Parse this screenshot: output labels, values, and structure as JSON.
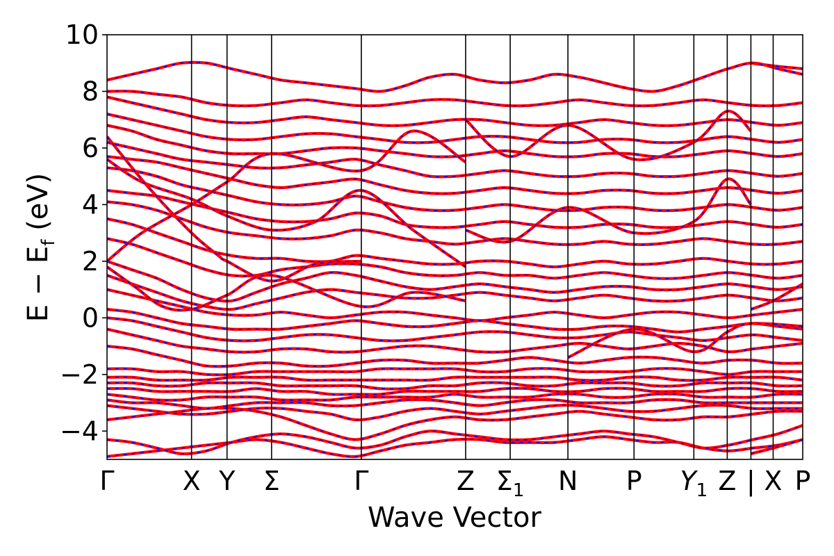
{
  "chart_data": {
    "type": "line",
    "xlabel": "Wave Vector",
    "ylabel": "E − E_f (eV)",
    "ylabel_parts": {
      "main": "E − E",
      "sub": "f",
      "unit": " (eV)"
    },
    "ylim": [
      -5,
      10
    ],
    "yticks": [
      -4,
      -2,
      0,
      2,
      4,
      6,
      8,
      10
    ],
    "grid": false,
    "kpath": [
      {
        "label": "Γ",
        "pos": 0.0
      },
      {
        "label": "X",
        "pos": 0.1215
      },
      {
        "label": "Y",
        "pos": 0.1725
      },
      {
        "label": "Σ",
        "pos": 0.2365
      },
      {
        "label": "Γ",
        "pos": 0.3655
      },
      {
        "label": "Z",
        "pos": 0.5155
      },
      {
        "label": "Σ",
        "sub": "1",
        "pos": 0.5795
      },
      {
        "label": "N",
        "pos": 0.6625
      },
      {
        "label": "P",
        "pos": 0.7575
      },
      {
        "label": "Y",
        "sub": "1",
        "italic": true,
        "pos": 0.8435
      },
      {
        "label": "Z",
        "pos": 0.8915
      },
      {
        "label": "|",
        "pos": 0.9255
      },
      {
        "label": "X",
        "pos": 0.9575
      },
      {
        "label": "P",
        "pos": 1.0
      }
    ],
    "series_colors": [
      "#ff0000",
      "#0000ff"
    ],
    "bands": [
      [
        -4.9,
        -4.8,
        -4.7,
        -4.6,
        -4.5,
        -4.4,
        -4.3,
        -4.4,
        -4.6,
        -4.8,
        -4.9,
        -4.7,
        -4.5,
        -4.4,
        -4.3,
        -4.3,
        -4.4,
        -4.4,
        -4.4,
        -4.3,
        -4.2,
        -4.3,
        -4.4,
        -4.4,
        -4.6,
        -4.7,
        -4.6,
        -4.5,
        -4.3
      ],
      [
        -4.3,
        -4.4,
        -4.6,
        -4.8,
        -4.7,
        -4.4,
        -4.2,
        -4.1,
        -4.2,
        -4.4,
        -4.6,
        -4.5,
        -4.2,
        -4.0,
        -4.1,
        -4.2,
        -4.3,
        -4.3,
        -4.2,
        -4.1,
        -4.0,
        -4.1,
        -4.2,
        -4.4,
        -4.6,
        -4.5,
        -4.3,
        -4.1,
        -3.8
      ],
      [
        -3.6,
        -3.5,
        -3.4,
        -3.3,
        -3.2,
        -3.2,
        -3.3,
        -3.5,
        -3.8,
        -4.1,
        -4.3,
        -4.1,
        -3.8,
        -3.6,
        -3.5,
        -3.6,
        -3.6,
        -3.5,
        -3.4,
        -3.3,
        -3.4,
        -3.5,
        -3.6,
        -3.6,
        -3.5,
        -3.5,
        -3.4,
        -3.3,
        -3.3
      ],
      [
        -3.1,
        -3.2,
        -3.3,
        -3.4,
        -3.4,
        -3.3,
        -3.2,
        -3.2,
        -3.3,
        -3.4,
        -3.6,
        -3.5,
        -3.3,
        -3.2,
        -3.3,
        -3.4,
        -3.3,
        -3.2,
        -3.1,
        -3.1,
        -3.2,
        -3.3,
        -3.3,
        -3.2,
        -3.1,
        -3.1,
        -3.2,
        -3.2,
        -3.2
      ],
      [
        -2.9,
        -3.0,
        -3.0,
        -3.1,
        -3.2,
        -3.1,
        -3.0,
        -3.0,
        -3.0,
        -3.1,
        -3.1,
        -3.0,
        -2.9,
        -2.9,
        -3.0,
        -3.1,
        -3.0,
        -2.9,
        -2.9,
        -3.0,
        -3.0,
        -3.0,
        -2.9,
        -2.9,
        -3.0,
        -3.0,
        -3.0,
        -3.0,
        -3.0
      ],
      [
        -2.7,
        -2.8,
        -2.9,
        -2.9,
        -2.8,
        -2.8,
        -2.8,
        -2.9,
        -2.9,
        -2.9,
        -2.8,
        -2.8,
        -2.8,
        -2.8,
        -2.7,
        -2.8,
        -2.8,
        -2.8,
        -2.7,
        -2.7,
        -2.8,
        -2.8,
        -2.7,
        -2.7,
        -2.8,
        -2.8,
        -2.8,
        -2.7,
        -2.7
      ],
      [
        -2.5,
        -2.5,
        -2.6,
        -2.6,
        -2.6,
        -2.6,
        -2.5,
        -2.6,
        -2.6,
        -2.7,
        -2.7,
        -2.7,
        -2.6,
        -2.6,
        -2.6,
        -2.6,
        -2.5,
        -2.5,
        -2.6,
        -2.6,
        -2.5,
        -2.5,
        -2.6,
        -2.6,
        -2.6,
        -2.5,
        -2.5,
        -2.6,
        -2.6
      ],
      [
        -2.3,
        -2.3,
        -2.4,
        -2.4,
        -2.3,
        -2.3,
        -2.3,
        -2.4,
        -2.4,
        -2.4,
        -2.4,
        -2.5,
        -2.5,
        -2.4,
        -2.4,
        -2.3,
        -2.3,
        -2.4,
        -2.4,
        -2.3,
        -2.3,
        -2.3,
        -2.4,
        -2.4,
        -2.3,
        -2.3,
        -2.3,
        -2.4,
        -2.4
      ],
      [
        -2.1,
        -2.1,
        -2.2,
        -2.2,
        -2.2,
        -2.1,
        -2.1,
        -2.1,
        -2.2,
        -2.2,
        -2.2,
        -2.2,
        -2.2,
        -2.2,
        -2.1,
        -2.1,
        -2.1,
        -2.1,
        -2.1,
        -2.2,
        -2.2,
        -2.1,
        -2.1,
        -2.2,
        -2.2,
        -2.1,
        -2.1,
        -2.1,
        -2.2
      ],
      [
        -1.8,
        -1.8,
        -1.9,
        -1.9,
        -2.0,
        -2.0,
        -1.9,
        -1.9,
        -1.9,
        -1.9,
        -1.9,
        -1.8,
        -1.8,
        -1.8,
        -1.8,
        -1.9,
        -1.9,
        -1.8,
        -1.8,
        -1.9,
        -1.9,
        -1.9,
        -1.8,
        -1.8,
        -1.9,
        -2.0,
        -1.9,
        -1.9,
        -1.9
      ],
      [
        -1.0,
        -1.1,
        -1.3,
        -1.5,
        -1.7,
        -1.7,
        -1.6,
        -1.6,
        -1.7,
        -1.7,
        -1.6,
        -1.5,
        -1.5,
        -1.6,
        -1.6,
        -1.6,
        -1.5,
        -1.4,
        -1.5,
        -1.6,
        -1.5,
        -1.4,
        -1.4,
        -1.5,
        -1.6,
        -1.5,
        -1.5,
        -1.6,
        -1.6
      ],
      [
        -0.4,
        -0.6,
        -0.8,
        -1.0,
        -1.1,
        -1.2,
        -1.2,
        -1.1,
        -1.1,
        -1.2,
        -1.2,
        -1.1,
        -1.0,
        -1.0,
        -1.1,
        -1.2,
        -1.2,
        -1.1,
        -1.0,
        -0.9,
        -1.0,
        -1.1,
        -1.0,
        -0.9,
        -1.0,
        -1.2,
        -1.1,
        -1.0,
        -0.9
      ],
      [
        0.0,
        -0.1,
        -0.3,
        -0.5,
        -0.7,
        -0.8,
        -0.8,
        -0.7,
        -0.6,
        -0.6,
        -0.7,
        -0.8,
        -0.8,
        -0.7,
        -0.6,
        -0.5,
        -0.5,
        -0.6,
        -0.7,
        -0.7,
        -0.6,
        -0.5,
        -0.6,
        -0.7,
        -0.8,
        -0.7,
        -0.6,
        -0.7,
        -0.8
      ],
      [
        0.3,
        0.2,
        0.0,
        -0.2,
        -0.3,
        -0.4,
        -0.4,
        -0.4,
        -0.3,
        -0.2,
        -0.1,
        -0.2,
        -0.3,
        -0.3,
        -0.2,
        -0.1,
        -0.2,
        -0.3,
        -0.4,
        -0.4,
        -0.3,
        -0.3,
        -0.4,
        -0.5,
        -0.4,
        -0.3,
        -0.2,
        -0.3,
        -0.4
      ],
      [
        1.0,
        0.8,
        0.6,
        0.4,
        0.2,
        0.1,
        0.1,
        0.2,
        0.1,
        0.0,
        0.1,
        0.2,
        0.2,
        0.1,
        0.0,
        -0.1,
        0.0,
        0.1,
        0.2,
        0.1,
        0.0,
        0.1,
        0.2,
        0.2,
        0.1,
        0.0,
        0.1,
        0.2,
        0.3
      ],
      [
        1.5,
        1.2,
        0.9,
        0.6,
        0.4,
        0.3,
        0.5,
        0.7,
        0.9,
        1.0,
        0.9,
        0.8,
        0.7,
        0.7,
        0.8,
        0.9,
        0.8,
        0.7,
        0.6,
        0.7,
        0.8,
        0.7,
        0.6,
        0.6,
        0.7,
        0.8,
        0.7,
        0.6,
        0.7
      ],
      [
        2.0,
        1.7,
        1.4,
        1.0,
        0.7,
        0.6,
        0.9,
        1.2,
        1.4,
        1.6,
        1.5,
        1.3,
        1.1,
        1.0,
        1.1,
        1.2,
        1.1,
        1.0,
        0.9,
        1.0,
        1.1,
        1.1,
        1.0,
        1.0,
        1.1,
        1.2,
        1.1,
        1.0,
        1.1
      ],
      [
        2.8,
        2.6,
        2.3,
        2.0,
        1.7,
        1.5,
        1.5,
        1.7,
        1.8,
        1.9,
        1.9,
        1.8,
        1.6,
        1.5,
        1.5,
        1.6,
        1.5,
        1.5,
        1.4,
        1.5,
        1.6,
        1.5,
        1.4,
        1.4,
        1.5,
        1.6,
        1.5,
        1.4,
        1.5
      ],
      [
        3.5,
        3.3,
        3.0,
        2.7,
        2.4,
        2.2,
        2.1,
        2.1,
        2.0,
        2.0,
        2.2,
        2.1,
        2.0,
        1.9,
        1.9,
        2.0,
        2.0,
        1.9,
        1.8,
        1.9,
        2.0,
        1.9,
        1.9,
        2.0,
        2.1,
        2.0,
        1.9,
        1.9,
        2.0
      ],
      [
        4.1,
        4.0,
        3.8,
        3.5,
        3.2,
        3.0,
        2.9,
        2.8,
        2.8,
        2.9,
        3.1,
        3.0,
        2.8,
        2.7,
        2.6,
        2.7,
        2.8,
        2.7,
        2.6,
        2.6,
        2.7,
        2.6,
        2.6,
        2.7,
        2.8,
        2.7,
        2.6,
        2.6,
        2.7
      ],
      [
        4.5,
        4.4,
        4.3,
        4.1,
        3.9,
        3.7,
        3.5,
        3.4,
        3.4,
        3.5,
        3.7,
        3.6,
        3.3,
        3.2,
        3.2,
        3.3,
        3.4,
        3.3,
        3.2,
        3.2,
        3.3,
        3.3,
        3.2,
        3.2,
        3.3,
        3.4,
        3.3,
        3.2,
        3.3
      ],
      [
        5.3,
        5.2,
        5.0,
        4.7,
        4.5,
        4.3,
        4.1,
        4.0,
        4.0,
        4.1,
        4.3,
        4.1,
        3.9,
        3.8,
        3.8,
        3.9,
        4.0,
        3.9,
        3.8,
        3.8,
        3.9,
        3.9,
        3.8,
        3.8,
        3.9,
        4.0,
        3.9,
        3.8,
        3.9
      ],
      [
        5.7,
        5.6,
        5.5,
        5.3,
        5.1,
        4.9,
        4.7,
        4.6,
        4.7,
        4.8,
        4.9,
        4.7,
        4.5,
        4.4,
        4.4,
        4.5,
        4.6,
        4.5,
        4.4,
        4.4,
        4.5,
        4.5,
        4.4,
        4.4,
        4.5,
        4.6,
        4.5,
        4.4,
        4.5
      ],
      [
        6.2,
        6.0,
        5.8,
        5.6,
        5.5,
        5.4,
        5.3,
        5.3,
        5.4,
        5.5,
        5.6,
        5.4,
        5.2,
        5.0,
        5.0,
        5.1,
        5.2,
        5.1,
        5.0,
        5.0,
        5.1,
        5.1,
        5.0,
        5.0,
        5.1,
        5.2,
        5.1,
        5.0,
        5.1
      ],
      [
        6.8,
        6.6,
        6.3,
        6.1,
        5.9,
        5.8,
        5.8,
        5.8,
        5.9,
        6.0,
        6.0,
        5.9,
        5.8,
        5.7,
        5.7,
        5.8,
        5.9,
        5.8,
        5.7,
        5.7,
        5.8,
        5.8,
        5.7,
        5.7,
        5.8,
        5.9,
        5.8,
        5.7,
        5.8
      ],
      [
        7.2,
        7.0,
        6.8,
        6.6,
        6.4,
        6.3,
        6.3,
        6.4,
        6.5,
        6.5,
        6.4,
        6.3,
        6.2,
        6.2,
        6.3,
        6.4,
        6.4,
        6.3,
        6.2,
        6.2,
        6.3,
        6.3,
        6.2,
        6.2,
        6.3,
        6.4,
        6.3,
        6.2,
        6.3
      ],
      [
        7.8,
        7.6,
        7.4,
        7.2,
        7.0,
        6.9,
        6.9,
        7.0,
        7.1,
        7.0,
        6.9,
        6.8,
        6.8,
        6.9,
        7.0,
        7.0,
        6.9,
        6.8,
        6.8,
        6.9,
        7.0,
        6.9,
        6.8,
        6.8,
        6.9,
        7.0,
        6.9,
        6.8,
        6.9
      ],
      [
        8.0,
        8.0,
        7.9,
        7.8,
        7.6,
        7.5,
        7.5,
        7.6,
        7.7,
        7.6,
        7.5,
        7.5,
        7.6,
        7.7,
        7.7,
        7.6,
        7.5,
        7.5,
        7.6,
        7.7,
        7.6,
        7.5,
        7.5,
        7.6,
        7.7,
        7.6,
        7.5,
        7.5,
        7.6
      ],
      [
        8.4,
        8.6,
        8.8,
        9.0,
        9.0,
        8.8,
        8.6,
        8.4,
        8.3,
        8.2,
        8.1,
        8.0,
        8.2,
        8.5,
        8.6,
        8.4,
        8.3,
        8.4,
        8.6,
        8.5,
        8.3,
        8.1,
        8.0,
        8.2,
        8.5,
        8.8,
        9.0,
        8.8,
        8.6
      ]
    ],
    "crossing_bands": [
      [
        [
          0.0,
          6.4
        ],
        [
          0.06,
          4.6
        ],
        [
          0.1215,
          3.0
        ],
        [
          0.16,
          2.2
        ],
        [
          0.1725,
          2.0
        ],
        [
          0.2365,
          1.3
        ],
        [
          0.3,
          1.9
        ],
        [
          0.3655,
          2.0
        ]
      ],
      [
        [
          0.0,
          5.6
        ],
        [
          0.05,
          4.8
        ],
        [
          0.1215,
          4.2
        ],
        [
          0.1725,
          3.6
        ],
        [
          0.2365,
          3.1
        ],
        [
          0.3,
          3.4
        ],
        [
          0.3655,
          4.5
        ],
        [
          0.44,
          3.1
        ],
        [
          0.5155,
          1.8
        ]
      ],
      [
        [
          0.0,
          1.8
        ],
        [
          0.04,
          1.1
        ],
        [
          0.08,
          0.4
        ],
        [
          0.1215,
          0.3
        ],
        [
          0.1725,
          0.8
        ],
        [
          0.2365,
          1.5
        ],
        [
          0.3655,
          0.4
        ],
        [
          0.44,
          0.9
        ],
        [
          0.5155,
          0.6
        ]
      ],
      [
        [
          0.0,
          2.0
        ],
        [
          0.05,
          3.0
        ],
        [
          0.1215,
          4.0
        ],
        [
          0.1725,
          4.8
        ],
        [
          0.2365,
          5.8
        ],
        [
          0.3655,
          5.2
        ],
        [
          0.44,
          6.6
        ],
        [
          0.5155,
          5.5
        ]
      ],
      [
        [
          0.5155,
          7.0
        ],
        [
          0.5795,
          5.7
        ],
        [
          0.6625,
          6.8
        ],
        [
          0.7575,
          5.6
        ],
        [
          0.8435,
          6.2
        ],
        [
          0.8915,
          7.3
        ],
        [
          0.9255,
          6.6
        ]
      ],
      [
        [
          0.5155,
          3.1
        ],
        [
          0.5795,
          2.7
        ],
        [
          0.6625,
          3.9
        ],
        [
          0.7575,
          3.0
        ],
        [
          0.8435,
          3.4
        ],
        [
          0.8915,
          4.9
        ],
        [
          0.9255,
          4.0
        ]
      ],
      [
        [
          0.6625,
          -1.4
        ],
        [
          0.7575,
          -0.4
        ],
        [
          0.8435,
          -1.2
        ],
        [
          0.8915,
          -0.5
        ],
        [
          0.9255,
          -0.2
        ],
        [
          1.0,
          -0.3
        ]
      ],
      [
        [
          0.9255,
          9.0
        ],
        [
          0.9575,
          8.9
        ],
        [
          1.0,
          8.8
        ]
      ],
      [
        [
          0.9255,
          0.3
        ],
        [
          0.9575,
          0.6
        ],
        [
          1.0,
          1.2
        ]
      ],
      [
        [
          0.9255,
          -4.8
        ],
        [
          0.9575,
          -4.6
        ],
        [
          1.0,
          -4.3
        ]
      ]
    ]
  }
}
